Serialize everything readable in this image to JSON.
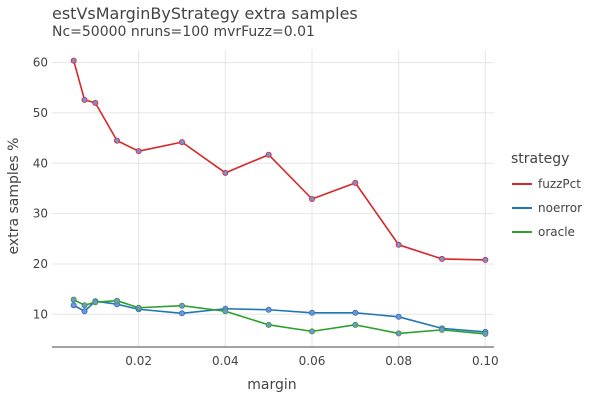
{
  "chart_data": {
    "type": "line",
    "title": "estVsMarginByStrategy extra samples",
    "subtitle": "Nc=50000 nruns=100 mvrFuzz=0.01",
    "xlabel": "margin",
    "ylabel": "extra samples %",
    "xlim": [
      0.0,
      0.102
    ],
    "ylim": [
      3.5,
      62.5
    ],
    "x_ticks": [
      0.02,
      0.04,
      0.06,
      0.08,
      0.1
    ],
    "x_tick_labels": [
      "0.02",
      "0.04",
      "0.06",
      "0.08",
      "0.10"
    ],
    "y_ticks": [
      10,
      20,
      30,
      40,
      50,
      60
    ],
    "y_tick_labels": [
      "10",
      "20",
      "30",
      "40",
      "50",
      "60"
    ],
    "grid": true,
    "legend": {
      "title": "strategy",
      "placement": "right"
    },
    "x": [
      0.005,
      0.0075,
      0.01,
      0.015,
      0.02,
      0.03,
      0.04,
      0.05,
      0.06,
      0.07,
      0.08,
      0.09,
      0.1
    ],
    "series": [
      {
        "name": "fuzzPct",
        "color": "#d62728",
        "values": [
          60.4,
          52.6,
          52.0,
          44.5,
          42.4,
          44.2,
          38.1,
          41.7,
          32.9,
          36.1,
          23.8,
          21.0,
          20.8
        ]
      },
      {
        "name": "noerror",
        "color": "#1f77b4",
        "values": [
          11.8,
          10.6,
          12.6,
          12.0,
          11.0,
          10.2,
          11.1,
          10.9,
          10.3,
          10.3,
          9.5,
          7.2,
          6.5
        ]
      },
      {
        "name": "oracle",
        "color": "#2ca02c",
        "values": [
          12.9,
          11.8,
          12.4,
          12.7,
          11.3,
          11.7,
          10.6,
          7.9,
          6.6,
          7.9,
          6.2,
          6.9,
          6.1
        ]
      }
    ],
    "marker_fill": "#7b8fd8"
  }
}
